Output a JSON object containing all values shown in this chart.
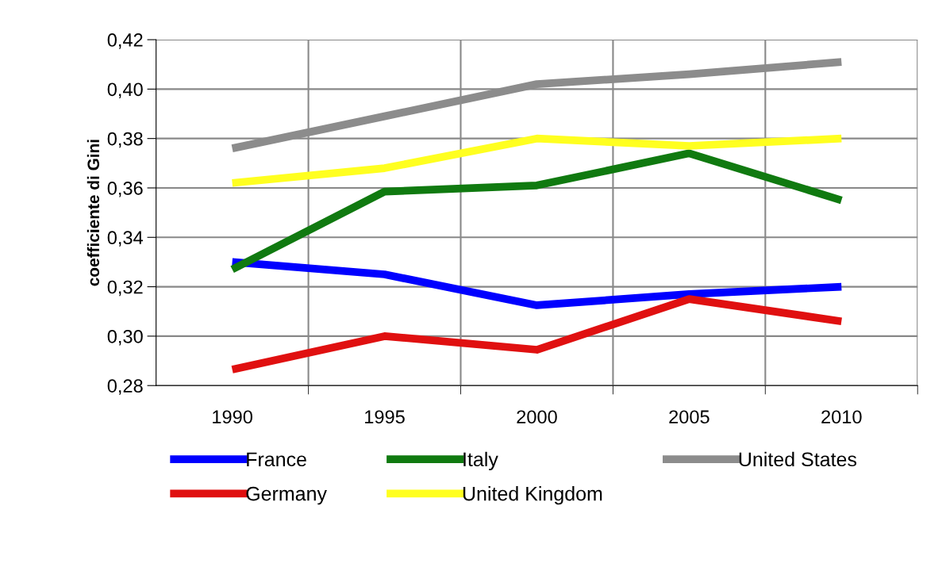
{
  "chart_data": {
    "type": "line",
    "ylabel": "coefficiente di Gini",
    "categories": [
      "1990",
      "1995",
      "2000",
      "2005",
      "2010"
    ],
    "series": [
      {
        "name": "France",
        "color": "#0000ff",
        "values": [
          0.33,
          0.325,
          0.3125,
          0.317,
          0.32
        ]
      },
      {
        "name": "Germany",
        "color": "#e01010",
        "values": [
          0.2865,
          0.3,
          0.2945,
          0.315,
          0.306
        ]
      },
      {
        "name": "Italy",
        "color": "#107a10",
        "values": [
          0.327,
          0.3585,
          0.361,
          0.374,
          0.355
        ]
      },
      {
        "name": "United Kingdom",
        "color": "#ffff20",
        "values": [
          0.362,
          0.368,
          0.38,
          0.377,
          0.38
        ]
      },
      {
        "name": "United States",
        "color": "#8c8c8c",
        "values": [
          0.376,
          0.389,
          0.402,
          0.406,
          0.411
        ]
      }
    ],
    "ylim": [
      0.28,
      0.42
    ],
    "yticks": [
      {
        "value": 0.28,
        "label": "0,28"
      },
      {
        "value": 0.3,
        "label": "0,30"
      },
      {
        "value": 0.32,
        "label": "0,32"
      },
      {
        "value": 0.34,
        "label": "0,34"
      },
      {
        "value": 0.36,
        "label": "0,36"
      },
      {
        "value": 0.38,
        "label": "0,38"
      },
      {
        "value": 0.4,
        "label": "0,40"
      },
      {
        "value": 0.42,
        "label": "0,42"
      }
    ],
    "grid": true,
    "legend": "bottom",
    "marker": "none",
    "line_style": "solid"
  }
}
